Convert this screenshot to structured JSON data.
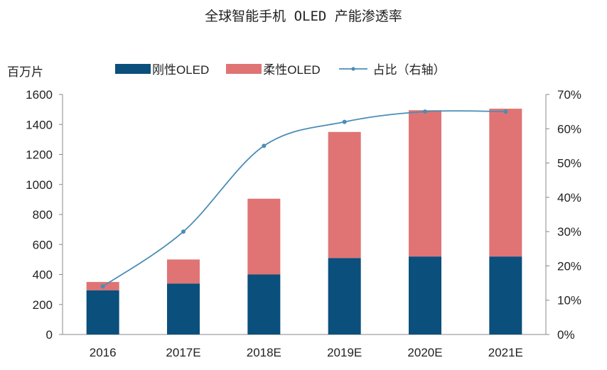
{
  "chart_data": {
    "type": "bar",
    "title": "全球智能手机 OLED 产能渗透率",
    "unit_label": "百万片",
    "categories": [
      "2016",
      "2017E",
      "2018E",
      "2019E",
      "2020E",
      "2021E"
    ],
    "series": [
      {
        "name": "刚性OLED",
        "type": "bar",
        "stack": "total",
        "axis": "left",
        "color": "#0b4f7c",
        "values": [
          295,
          340,
          400,
          510,
          520,
          520
        ]
      },
      {
        "name": "柔性OLED",
        "type": "bar",
        "stack": "total",
        "axis": "left",
        "color": "#e07474",
        "values": [
          55,
          160,
          505,
          840,
          975,
          985
        ]
      },
      {
        "name": "占比（右轴）",
        "type": "line",
        "axis": "right",
        "color": "#4a8db7",
        "values": [
          14,
          30,
          55,
          62,
          65,
          65
        ]
      }
    ],
    "y_left": {
      "min": 0,
      "max": 1600,
      "ticks": [
        "0",
        "200",
        "400",
        "600",
        "800",
        "1000",
        "1200",
        "1400",
        "1600"
      ]
    },
    "y_right": {
      "min": 0,
      "max": 70,
      "ticks": [
        "0%",
        "10%",
        "20%",
        "30%",
        "40%",
        "50%",
        "60%",
        "70%"
      ]
    },
    "grid": false,
    "legend_position": "top"
  }
}
